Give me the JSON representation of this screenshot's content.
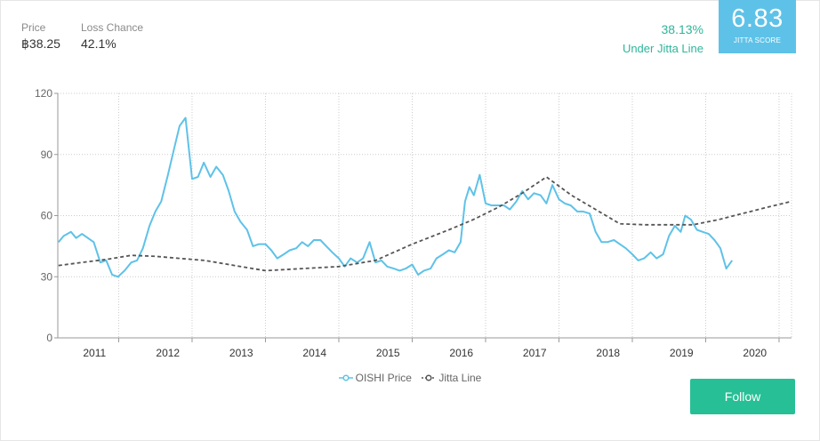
{
  "header": {
    "price_label": "Price",
    "price_value": "฿38.25",
    "loss_label": "Loss Chance",
    "loss_value": "42.1%",
    "deviation_pct": "38.13%",
    "deviation_text": "Under Jitta Line",
    "score_value": "6.83",
    "score_caption": "JITTA SCORE"
  },
  "colors": {
    "price_line": "#5ec2e8",
    "jitta_line": "#555555",
    "accent_green": "#2fb59a",
    "follow_button": "#27bf95",
    "score_box": "#5ec2e8"
  },
  "legend": {
    "price": "OISHI Price",
    "jitta": "Jitta Line"
  },
  "actions": {
    "follow_label": "Follow"
  },
  "chart_data": {
    "type": "line",
    "title": "",
    "xlabel": "",
    "ylabel": "",
    "ylim": [
      0,
      120
    ],
    "xlim": [
      2010.17,
      2020.17
    ],
    "yticks": [
      0,
      30,
      60,
      90,
      120
    ],
    "xtick_labels": [
      "2011",
      "2012",
      "2013",
      "2014",
      "2015",
      "2016",
      "2017",
      "2018",
      "2019",
      "2020"
    ],
    "x_year_boundaries": [
      2011,
      2012,
      2013,
      2014,
      2015,
      2016,
      2017,
      2018,
      2019,
      2020
    ],
    "grid": true,
    "legend_position": "bottom-center",
    "series": [
      {
        "name": "OISHI Price",
        "points": [
          [
            2010.18,
            47
          ],
          [
            2010.25,
            50
          ],
          [
            2010.35,
            52
          ],
          [
            2010.42,
            49
          ],
          [
            2010.5,
            51
          ],
          [
            2010.58,
            49
          ],
          [
            2010.66,
            47
          ],
          [
            2010.75,
            37
          ],
          [
            2010.83,
            38
          ],
          [
            2010.91,
            31
          ],
          [
            2010.99,
            30
          ],
          [
            2011.08,
            33
          ],
          [
            2011.17,
            37
          ],
          [
            2011.25,
            38
          ],
          [
            2011.33,
            44
          ],
          [
            2011.42,
            55
          ],
          [
            2011.5,
            62
          ],
          [
            2011.58,
            67
          ],
          [
            2011.67,
            80
          ],
          [
            2011.75,
            92
          ],
          [
            2011.83,
            104
          ],
          [
            2011.91,
            108
          ],
          [
            2012.0,
            78
          ],
          [
            2012.08,
            79
          ],
          [
            2012.16,
            86
          ],
          [
            2012.25,
            79
          ],
          [
            2012.33,
            84
          ],
          [
            2012.42,
            80
          ],
          [
            2012.5,
            72
          ],
          [
            2012.58,
            62
          ],
          [
            2012.66,
            57
          ],
          [
            2012.75,
            53
          ],
          [
            2012.83,
            45
          ],
          [
            2012.91,
            46
          ],
          [
            2013.0,
            46
          ],
          [
            2013.08,
            43
          ],
          [
            2013.16,
            39
          ],
          [
            2013.25,
            41
          ],
          [
            2013.33,
            43
          ],
          [
            2013.42,
            44
          ],
          [
            2013.5,
            47
          ],
          [
            2013.58,
            45
          ],
          [
            2013.66,
            48
          ],
          [
            2013.75,
            48
          ],
          [
            2013.83,
            45
          ],
          [
            2013.91,
            42
          ],
          [
            2014.0,
            39
          ],
          [
            2014.08,
            35
          ],
          [
            2014.16,
            39
          ],
          [
            2014.25,
            37
          ],
          [
            2014.33,
            39
          ],
          [
            2014.42,
            47
          ],
          [
            2014.5,
            37
          ],
          [
            2014.58,
            38
          ],
          [
            2014.66,
            35
          ],
          [
            2014.75,
            34
          ],
          [
            2014.83,
            33
          ],
          [
            2014.91,
            34
          ],
          [
            2015.0,
            36
          ],
          [
            2015.08,
            31
          ],
          [
            2015.16,
            33
          ],
          [
            2015.25,
            34
          ],
          [
            2015.33,
            39
          ],
          [
            2015.42,
            41
          ],
          [
            2015.5,
            43
          ],
          [
            2015.58,
            42
          ],
          [
            2015.66,
            47
          ],
          [
            2015.72,
            67
          ],
          [
            2015.78,
            74
          ],
          [
            2015.84,
            70
          ],
          [
            2015.92,
            80
          ],
          [
            2016.0,
            66
          ],
          [
            2016.08,
            65
          ],
          [
            2016.16,
            65
          ],
          [
            2016.25,
            65
          ],
          [
            2016.33,
            63
          ],
          [
            2016.42,
            67
          ],
          [
            2016.5,
            72
          ],
          [
            2016.58,
            68
          ],
          [
            2016.66,
            71
          ],
          [
            2016.75,
            70
          ],
          [
            2016.83,
            66
          ],
          [
            2016.91,
            75
          ],
          [
            2017.0,
            68
          ],
          [
            2017.08,
            66
          ],
          [
            2017.16,
            65
          ],
          [
            2017.25,
            62
          ],
          [
            2017.33,
            62
          ],
          [
            2017.42,
            61
          ],
          [
            2017.5,
            52
          ],
          [
            2017.58,
            47
          ],
          [
            2017.66,
            47
          ],
          [
            2017.75,
            48
          ],
          [
            2017.83,
            46
          ],
          [
            2017.91,
            44
          ],
          [
            2018.0,
            41
          ],
          [
            2018.08,
            38
          ],
          [
            2018.16,
            39
          ],
          [
            2018.25,
            42
          ],
          [
            2018.33,
            39
          ],
          [
            2018.42,
            41
          ],
          [
            2018.5,
            50
          ],
          [
            2018.58,
            55
          ],
          [
            2018.66,
            52
          ],
          [
            2018.72,
            60
          ],
          [
            2018.8,
            58
          ],
          [
            2018.88,
            53
          ],
          [
            2018.96,
            52
          ],
          [
            2019.04,
            51
          ],
          [
            2019.12,
            48
          ],
          [
            2019.2,
            44
          ],
          [
            2019.28,
            34
          ],
          [
            2019.36,
            38
          ]
        ]
      },
      {
        "name": "Jitta Line",
        "points": [
          [
            2010.18,
            35.5
          ],
          [
            2010.5,
            37
          ],
          [
            2010.83,
            38.5
          ],
          [
            2011.17,
            40.5
          ],
          [
            2011.5,
            40
          ],
          [
            2011.83,
            39
          ],
          [
            2012.17,
            38
          ],
          [
            2012.5,
            36
          ],
          [
            2012.83,
            34
          ],
          [
            2013.0,
            33
          ],
          [
            2013.5,
            34
          ],
          [
            2014.0,
            35
          ],
          [
            2014.5,
            38
          ],
          [
            2015.0,
            46
          ],
          [
            2015.5,
            53
          ],
          [
            2015.83,
            58
          ],
          [
            2016.17,
            64
          ],
          [
            2016.5,
            71
          ],
          [
            2016.83,
            79
          ],
          [
            2017.17,
            70
          ],
          [
            2017.5,
            63
          ],
          [
            2017.83,
            56
          ],
          [
            2018.17,
            55.5
          ],
          [
            2018.5,
            55.5
          ],
          [
            2018.83,
            55.5
          ],
          [
            2019.17,
            58
          ],
          [
            2019.5,
            61
          ],
          [
            2019.83,
            64
          ],
          [
            2020.17,
            67
          ]
        ]
      }
    ]
  }
}
